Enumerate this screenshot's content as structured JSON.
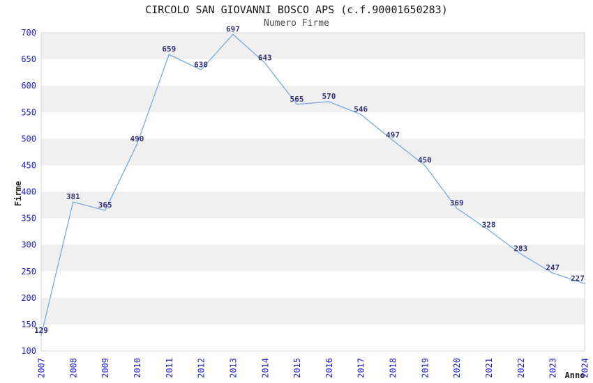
{
  "chart_data": {
    "type": "line",
    "title": "CIRCOLO SAN GIOVANNI BOSCO APS (c.f.90001650283)",
    "subtitle": "Numero Firme",
    "xlabel": "Anno",
    "ylabel": "Firme",
    "categories": [
      "2007",
      "2008",
      "2009",
      "2010",
      "2011",
      "2012",
      "2013",
      "2014",
      "2015",
      "2016",
      "2017",
      "2018",
      "2019",
      "2020",
      "2021",
      "2022",
      "2023",
      "2024"
    ],
    "values": [
      129,
      381,
      365,
      490,
      659,
      630,
      697,
      643,
      565,
      570,
      546,
      497,
      450,
      369,
      328,
      283,
      247,
      227
    ],
    "ylim": [
      100,
      700
    ],
    "ytick_step": 50,
    "grid": "alternating-horizontal-bands",
    "legend": "none",
    "data_labels": "on",
    "colors": {
      "line": "#76abe3",
      "band_gray": "#f0f0f0",
      "band_white": "#ffffff",
      "plot_border": "#d6d6d6",
      "tick_label": "#2222cc",
      "data_label": "#333377",
      "title": "#1a1a1a",
      "subtitle": "#4d4d4d",
      "axis_title": "#222222",
      "background": "#ffffff"
    }
  }
}
